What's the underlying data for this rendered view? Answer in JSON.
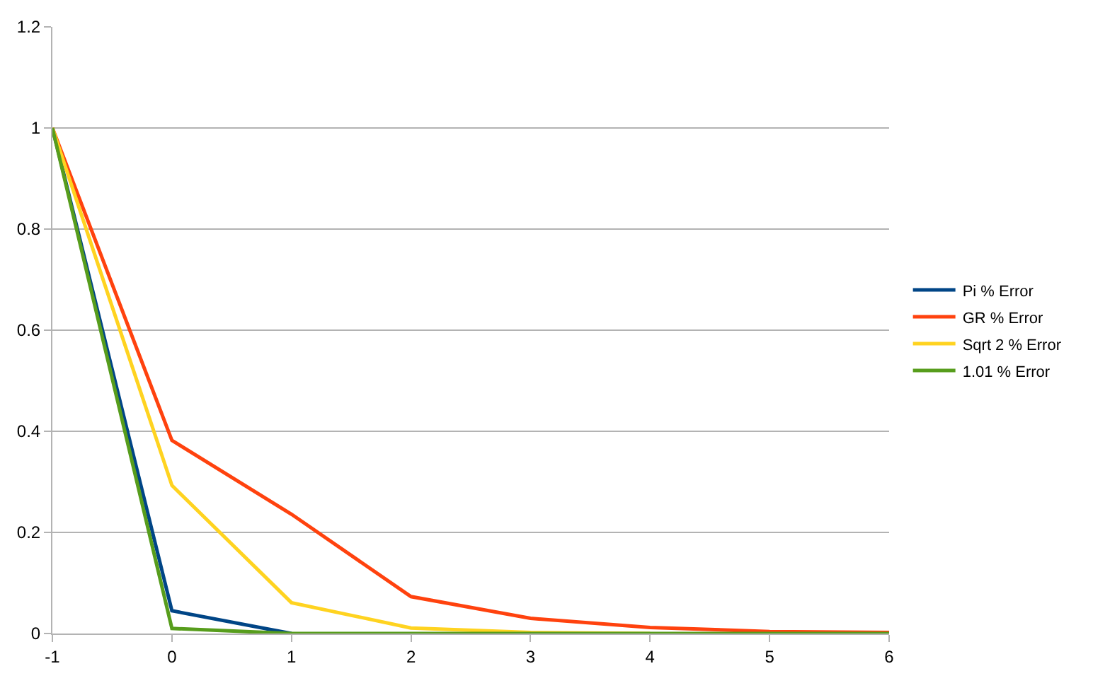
{
  "chart_data": {
    "type": "line",
    "x": [
      -1,
      0,
      1,
      2,
      3,
      4,
      5,
      6
    ],
    "series": [
      {
        "name": "Pi % Error",
        "color": "#004586",
        "values": [
          1,
          0.045,
          0,
          null,
          null,
          null,
          null,
          null
        ]
      },
      {
        "name": "GR % Error",
        "color": "#ff420e",
        "values": [
          1,
          0.382,
          0.236,
          0.073,
          0.03,
          0.012,
          0.004,
          0.002
        ]
      },
      {
        "name": "Sqrt 2 % Error",
        "color": "#ffd320",
        "values": [
          1,
          0.293,
          0.061,
          0.011,
          0.002,
          0,
          null,
          null
        ]
      },
      {
        "name": "1.01 % Error",
        "color": "#579d1c",
        "values": [
          1,
          0.01,
          0,
          0,
          0,
          0,
          0,
          0
        ]
      }
    ],
    "xlim": [
      -1,
      6
    ],
    "xticks": [
      -1,
      0,
      1,
      2,
      3,
      4,
      5,
      6
    ],
    "ylim": [
      0,
      1.2
    ],
    "yticks": [
      0,
      0.2,
      0.4,
      0.6,
      0.8,
      1,
      1.2
    ],
    "grid": "y",
    "legend": "right",
    "marker": "none",
    "line_style": "solid"
  }
}
